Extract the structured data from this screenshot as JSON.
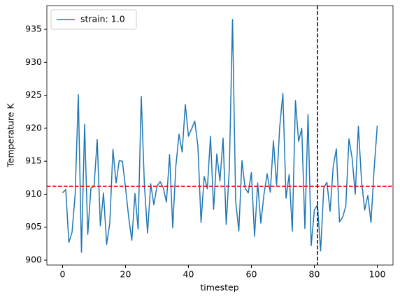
{
  "chart_data": {
    "type": "line",
    "xlabel": "timestep",
    "ylabel": "Temperature K",
    "x": [
      0,
      1,
      2,
      3,
      4,
      5,
      6,
      7,
      8,
      9,
      10,
      11,
      12,
      13,
      14,
      15,
      16,
      17,
      18,
      19,
      20,
      21,
      22,
      23,
      24,
      25,
      26,
      27,
      28,
      29,
      30,
      31,
      32,
      33,
      34,
      35,
      36,
      37,
      38,
      39,
      40,
      41,
      42,
      43,
      44,
      45,
      46,
      47,
      48,
      49,
      50,
      51,
      52,
      53,
      54,
      55,
      56,
      57,
      58,
      59,
      60,
      61,
      62,
      63,
      64,
      65,
      66,
      67,
      68,
      69,
      70,
      71,
      72,
      73,
      74,
      75,
      76,
      77,
      78,
      79,
      80,
      81,
      82,
      83,
      84,
      85,
      86,
      87,
      88,
      89,
      90,
      91,
      92,
      93,
      94,
      95,
      96,
      97,
      98,
      99,
      100
    ],
    "series": [
      {
        "name": "strain: 1.0",
        "color": "#1f77b4",
        "values": [
          910.2,
          910.7,
          902.7,
          904.2,
          910,
          925.1,
          901.2,
          920.6,
          903.9,
          910.9,
          911.2,
          918.3,
          905.2,
          910.2,
          902.4,
          905.6,
          916.8,
          911.7,
          915.1,
          915,
          911,
          906.5,
          903,
          910.1,
          904.7,
          924.8,
          911.4,
          904.1,
          911.6,
          908.4,
          911.2,
          911.9,
          911,
          908.8,
          916,
          904.9,
          914.3,
          919.1,
          916.4,
          923.6,
          918.8,
          919.9,
          921.1,
          917.3,
          905.7,
          912.7,
          910.8,
          918.8,
          907.7,
          916.1,
          912,
          918.5,
          905.4,
          914,
          936.5,
          909,
          904.4,
          915.1,
          910.9,
          910.2,
          913.3,
          903.6,
          911.7,
          905.6,
          910,
          913.1,
          910.3,
          918.1,
          911.4,
          920.2,
          925.3,
          909.4,
          913,
          904.4,
          924.2,
          918,
          920,
          904.8,
          922.1,
          902.2,
          907.6,
          908.4,
          901.4,
          911,
          911.8,
          907.4,
          914.2,
          916.9,
          905.8,
          906.5,
          908.2,
          918.4,
          915.5,
          910,
          920.3,
          912,
          907.6,
          909.8,
          905.7,
          913.8,
          920.4
        ]
      }
    ],
    "hlines": [
      {
        "y": 911.2,
        "color": "#ff0000"
      }
    ],
    "vlines": [
      {
        "x": 81,
        "color": "#000000"
      }
    ],
    "xlim": [
      -5,
      105
    ],
    "ylim": [
      899.26,
      938.6
    ],
    "xticks": [
      0,
      20,
      40,
      60,
      80,
      100
    ],
    "yticks": [
      900,
      905,
      910,
      915,
      920,
      925,
      930,
      935
    ],
    "legend": "upper left"
  }
}
